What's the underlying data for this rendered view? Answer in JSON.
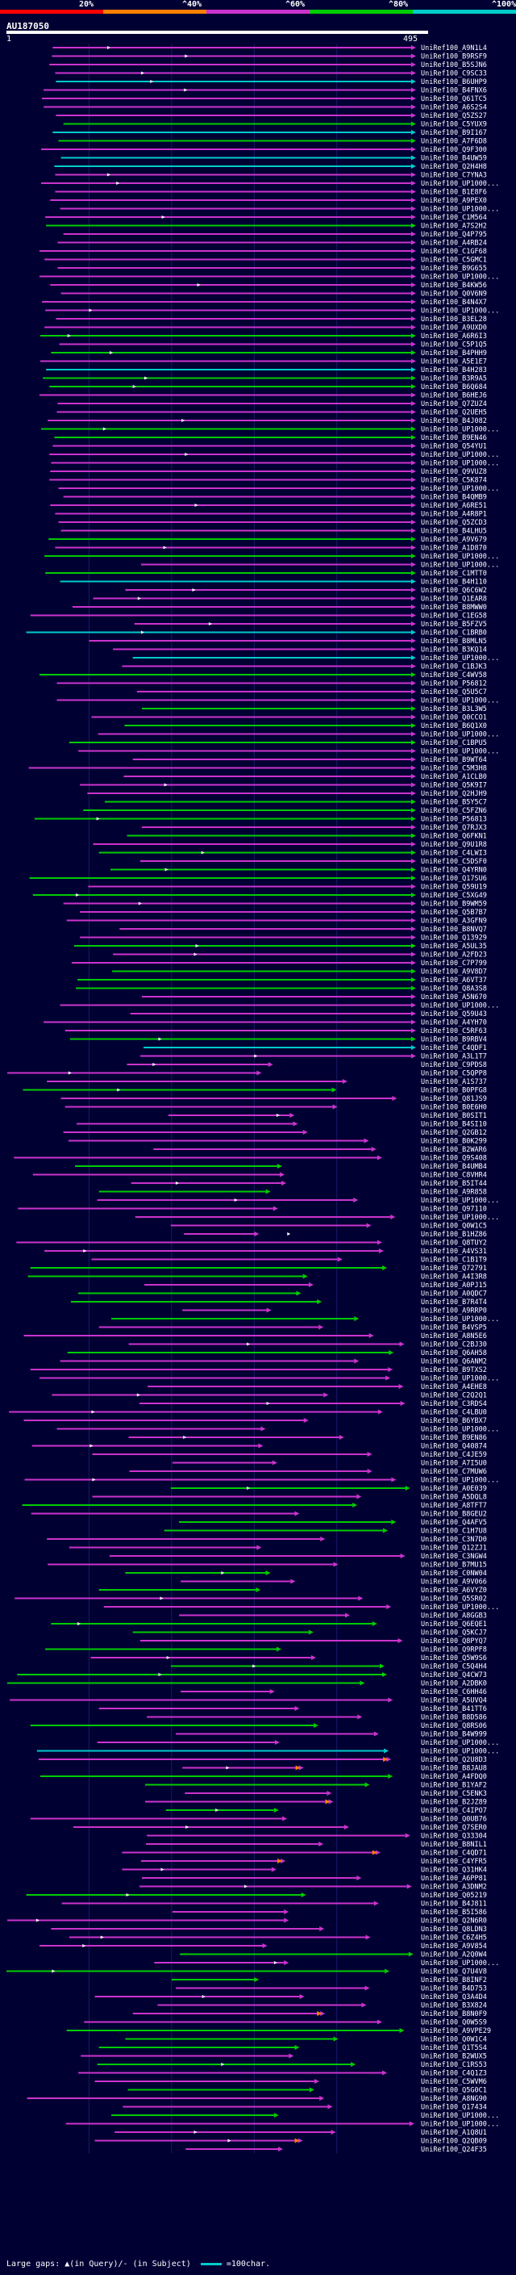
{
  "legend": {
    "labels": [
      "20%",
      "^40%",
      "^60%",
      "^80%",
      "^100%"
    ],
    "colors": [
      "#ff0000",
      "#ff8000",
      "#cc33cc",
      "#00cc00",
      "#00cccc"
    ]
  },
  "query": {
    "id": "AU187050",
    "start": "1",
    "end": "495"
  },
  "footer": {
    "gaps_text": "Large gaps: ▲(in Query)/- (in Subject)",
    "scale_text": "=100char."
  },
  "chart_data": {
    "type": "alignment-overview",
    "query_length": 495,
    "hit_names": [
      "UniRef100_A9N1L4",
      "UniRef100_B9RSF9",
      "UniRef100_B5SJN6",
      "UniRef100_C9SC33",
      "UniRef100_B6UHP9",
      "UniRef100_B4FNX6",
      "UniRef100_Q61TC5",
      "UniRef100_A6S2S4",
      "UniRef100_Q5ZS27",
      "UniRef100_C5YUX9",
      "UniRef100_B9I167",
      "UniRef100_A7F6D8",
      "UniRef100_Q9F300",
      "UniRef100_B4UW59",
      "UniRef100_Q2H4H8",
      "UniRef100_C7YNA3",
      "UniRef100_UP1000...",
      "UniRef100_B1E8F6",
      "UniRef100_A9PEX0",
      "UniRef100_UP1000...",
      "UniRef100_C1M564",
      "UniRef100_A7S2H2",
      "UniRef100_Q4P795",
      "UniRef100_A4RB24",
      "UniRef100_C1GF68",
      "UniRef100_C5GMC1",
      "UniRef100_B9G655",
      "UniRef100_UP1000...",
      "UniRef100_B4KW56",
      "UniRef100_Q0V6N9",
      "UniRef100_B4N4X7",
      "UniRef100_UP1000...",
      "UniRef100_B3EL28",
      "UniRef100_A9UXD0",
      "UniRef100_A6R6I3",
      "UniRef100_C5P1Q5",
      "UniRef100_B4PHH9",
      "UniRef100_A5E1E7",
      "UniRef100_B4H283",
      "UniRef100_B3R9A5",
      "UniRef100_B6Q684",
      "UniRef100_B6HEJ6",
      "UniRef100_Q7ZUZ4",
      "UniRef100_Q2UEH5",
      "UniRef100_B4J082",
      "UniRef100_UP1000...",
      "UniRef100_B9EN46",
      "UniRef100_Q54YU1",
      "UniRef100_UP1000...",
      "UniRef100_UP1000...",
      "UniRef100_Q9VUZ8",
      "UniRef100_C5K874",
      "UniRef100_UP1000...",
      "UniRef100_B4QMB9",
      "UniRef100_A6RE51",
      "UniRef100_A4R8P1",
      "UniRef100_Q5ZCD3",
      "UniRef100_B4LHU5",
      "UniRef100_A9V679",
      "UniRef100_A1D870",
      "UniRef100_UP1000...",
      "UniRef100_UP1000...",
      "UniRef100_C1MTT0",
      "UniRef100_B4H110",
      "UniRef100_Q6C6W2",
      "UniRef100_Q1EAR8",
      "UniRef100_B8MWW0",
      "UniRef100_C1EG58",
      "UniRef100_B5FZV5",
      "UniRef100_C1BRB0",
      "UniRef100_B8MLN5",
      "UniRef100_B3KQ14",
      "UniRef100_UP1000...",
      "UniRef100_C1BJK3",
      "UniRef100_C4WV58",
      "UniRef100_P56812",
      "UniRef100_Q5U5C7",
      "UniRef100_UP1000...",
      "UniRef100_B3L3W5",
      "UniRef100_Q0CCO1",
      "UniRef100_B6Q1X0",
      "UniRef100_UP1000...",
      "UniRef100_C1BPU5",
      "UniRef100_UP1000...",
      "UniRef100_B9WT64",
      "UniRef100_C5M3H8",
      "UniRef100_A1CLB0",
      "UniRef100_Q5K9I7",
      "UniRef100_Q2HJH9",
      "UniRef100_B5Y5C7",
      "UniRef100_C5FZN6",
      "UniRef100_P56813",
      "UniRef100_Q7RJX3",
      "UniRef100_Q6FKN1",
      "UniRef100_Q9U1R8",
      "UniRef100_C4LWI3",
      "UniRef100_C5DSF0",
      "UniRef100_Q4YRN0",
      "UniRef100_Q17SU6",
      "UniRef100_Q59U19",
      "UniRef100_C5XG49",
      "UniRef100_B9WM59",
      "UniRef100_Q5B7B7",
      "UniRef100_A3GFN9",
      "UniRef100_B8NVQ7",
      "UniRef100_Q13929",
      "UniRef100_A5UL35",
      "UniRef100_A2FD23",
      "UniRef100_C7P799",
      "UniRef100_A9V8D7",
      "UniRef100_A6VT37",
      "UniRef100_Q8A3S8",
      "UniRef100_A5N670",
      "UniRef100_UP1000...",
      "UniRef100_Q59U43",
      "UniRef100_A4YH70",
      "UniRef100_C5RF63",
      "UniRef100_B9RBV4",
      "UniRef100_C4QDF1",
      "UniRef100_A3L1T7",
      "UniRef100_C9PDS8",
      "UniRef100_C5QPP8",
      "UniRef100_A1S737",
      "UniRef100_B0PFG8",
      "UniRef100_Q81JS9",
      "UniRef100_B0E6H0",
      "UniRef100_B0SIT1",
      "UniRef100_B4SI10",
      "UniRef100_Q2GB12",
      "UniRef100_B0K299",
      "UniRef100_B2WAR6",
      "UniRef100_Q9S408",
      "UniRef100_B4UMB4",
      "UniRef100_C8VHR4",
      "UniRef100_B5IT44",
      "UniRef100_A9R858",
      "UniRef100_UP1000...",
      "UniRef100_Q97110",
      "UniRef100_UP1000...",
      "UniRef100_Q0W1C5",
      "UniRef100_B1HZ86",
      "UniRef100_Q8TUY2",
      "UniRef100_A4VS31",
      "UniRef100_C1B1T9",
      "UniRef100_Q72791",
      "UniRef100_A4I3R8",
      "UniRef100_A0PJ15",
      "UniRef100_A0QDC7",
      "UniRef100_B7R4T4",
      "UniRef100_A9RRP0",
      "UniRef100_UP1000...",
      "UniRef100_B4VSP5",
      "UniRef100_A8N5E6",
      "UniRef100_C2BJ30",
      "UniRef100_Q6AH58",
      "UniRef100_Q6ANM2",
      "UniRef100_B9TXS2",
      "UniRef100_UP1000...",
      "UniRef100_A4EHE8",
      "UniRef100_C2Q2Q1",
      "UniRef100_C3RDS4",
      "UniRef100_C4LBU0",
      "UniRef100_B6YBX7",
      "UniRef100_UP1000...",
      "UniRef100_B9EN86",
      "UniRef100_Q40874",
      "UniRef100_C4JE59",
      "UniRef100_A7I5U0",
      "UniRef100_C7MUW6",
      "UniRef100_UP1000...",
      "UniRef100_A0E039",
      "UniRef100_A5DQL8",
      "UniRef100_A8TFT7",
      "UniRef100_B8GEU2",
      "UniRef100_Q4AFV5",
      "UniRef100_C1H7U8",
      "UniRef100_C3N7D0",
      "UniRef100_Q12ZJ1",
      "UniRef100_C3NGW4",
      "UniRef100_B7MU15",
      "UniRef100_C0NW04",
      "UniRef100_A9V066",
      "UniRef100_A6VYZ0",
      "UniRef100_Q5SR02",
      "UniRef100_UP1000...",
      "UniRef100_A8GGB3",
      "UniRef100_Q6EQE1",
      "UniRef100_Q5KCJ7",
      "UniRef100_Q8PYQ7",
      "UniRef100_Q9RPF8",
      "UniRef100_Q5W9S6",
      "UniRef100_C5Q4H4",
      "UniRef100_Q4CW73",
      "UniRef100_A2DBK0",
      "UniRef100_C6HH46",
      "UniRef100_A5UVQ4",
      "UniRef100_B41TT6",
      "UniRef100_B8D586",
      "UniRef100_Q8RS06",
      "UniRef100_B4W999",
      "UniRef100_UP1000...",
      "UniRef100_UP1000...",
      "UniRef100_Q2U8D3",
      "UniRef100_B8JAU8",
      "UniRef100_A4FDQ0",
      "UniRef100_B1YAF2",
      "UniRef100_C5ENK3",
      "UniRef100_B2JZ89",
      "UniRef100_C4IPO7",
      "UniRef100_Q0UB76",
      "UniRef100_Q7SER0",
      "UniRef100_Q33304",
      "UniRef100_B8NIL1",
      "UniRef100_C4QD71",
      "UniRef100_C4YFR5",
      "UniRef100_Q31HK4",
      "UniRef100_A6PP81",
      "UniRef100_A3DNM2",
      "UniRef100_Q05219",
      "UniRef100_B4J811",
      "UniRef100_B5I586",
      "UniRef100_Q2N6R0",
      "UniRef100_Q8LDN3",
      "UniRef100_C6Z4H5",
      "UniRef100_A9V854",
      "UniRef100_A2Q0W4",
      "UniRef100_UP1000...",
      "UniRef100_Q7U4V8",
      "UniRef100_B8INF2",
      "UniRef100_B4D753",
      "UniRef100_Q3A4D4",
      "UniRef100_B3X824",
      "UniRef100_B8N0F9",
      "UniRef100_Q0W5S9",
      "UniRef100_A9VPE29",
      "UniRef100_Q0W1C4",
      "UniRef100_Q1T5S4",
      "UniRef100_B2WUX5",
      "UniRef100_C1RS53",
      "UniRef100_C4Q1Z3",
      "UniRef100_C5WVM6",
      "UniRef100_Q5G0C1",
      "UniRef100_A8NG90",
      "UniRef100_Q17434",
      "UniRef100_UP1000...",
      "UniRef100_UP1000...",
      "UniRef100_A1Q8U1",
      "UniRef100_Q2QB09",
      "UniRef100_Q24F35"
    ]
  }
}
